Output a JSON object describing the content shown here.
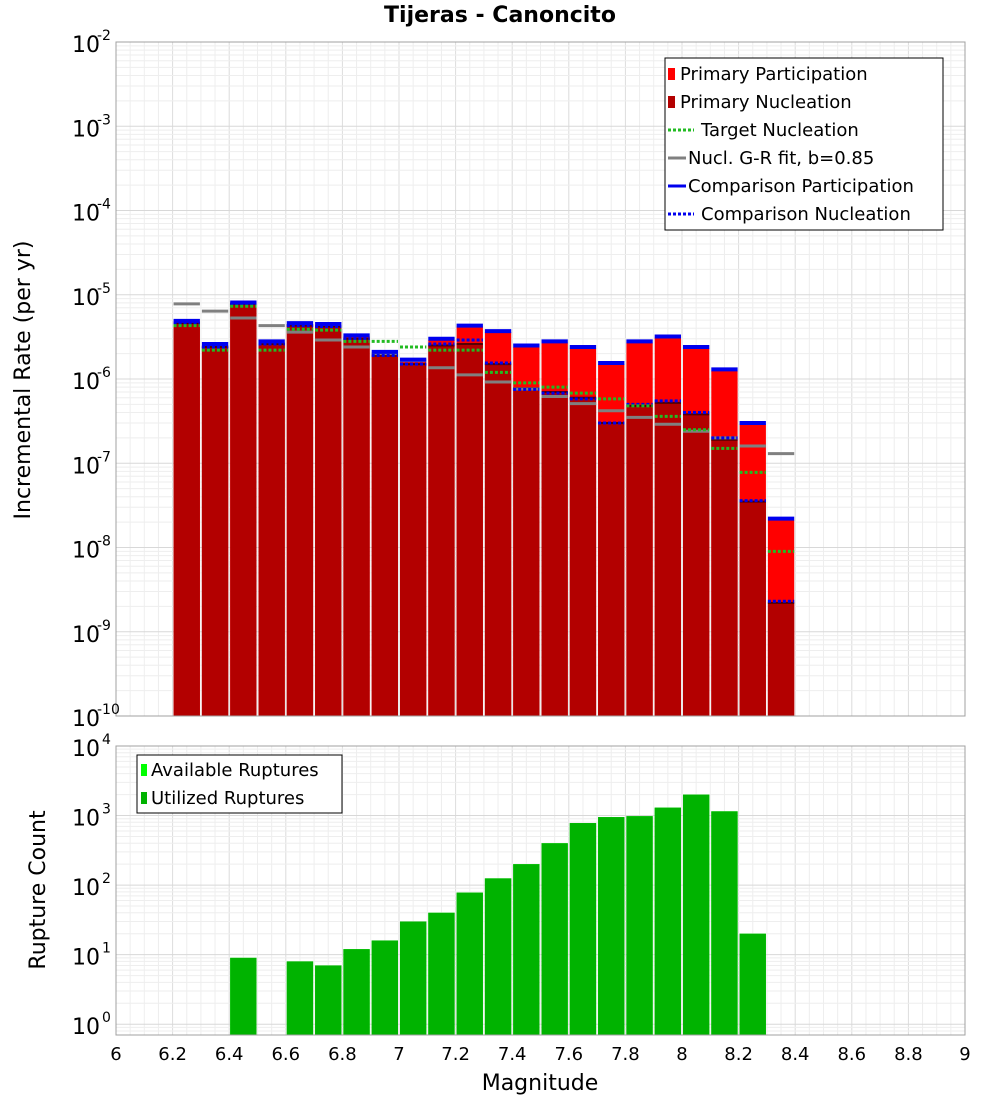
{
  "chart_data": [
    {
      "type": "bar",
      "title": "Tijeras - Canoncito",
      "xlabel": "",
      "ylabel": "Incremental Rate (per yr)",
      "yscale": "log",
      "ylim": [
        1e-10,
        0.01
      ],
      "xlim": [
        6,
        9
      ],
      "ytick_labels": [
        {
          "base": "10",
          "exp": "-2",
          "value": 0.01
        },
        {
          "base": "10",
          "exp": "-3",
          "value": 0.001
        },
        {
          "base": "10",
          "exp": "-4",
          "value": 0.0001
        },
        {
          "base": "10",
          "exp": "-5",
          "value": 1e-05
        },
        {
          "base": "10",
          "exp": "-6",
          "value": 1e-06
        },
        {
          "base": "10",
          "exp": "-7",
          "value": 1e-07
        },
        {
          "base": "10",
          "exp": "-8",
          "value": 1e-08
        },
        {
          "base": "10",
          "exp": "-9",
          "value": 1e-09
        },
        {
          "base": "10",
          "exp": "-10",
          "value": 1e-10
        }
      ],
      "grid": true,
      "legend_position": "top-right",
      "x": [
        6.25,
        6.35,
        6.45,
        6.55,
        6.65,
        6.75,
        6.85,
        6.95,
        7.05,
        7.15,
        7.25,
        7.35,
        7.45,
        7.55,
        7.65,
        7.75,
        7.85,
        7.95,
        8.05,
        8.15,
        8.25,
        8.35
      ],
      "series": [
        {
          "name": "Primary Participation",
          "color": "#ff0000",
          "values": [
            4.8e-06,
            2.5e-06,
            8e-06,
            2.7e-06,
            4.5e-06,
            4.4e-06,
            3.2e-06,
            2e-06,
            1.6e-06,
            2.9e-06,
            4.2e-06,
            3.6e-06,
            2.4e-06,
            2.7e-06,
            2.3e-06,
            1.5e-06,
            2.7e-06,
            3.1e-06,
            2.3e-06,
            1.25e-06,
            2.9e-07,
            2.1e-08
          ]
        },
        {
          "name": "Primary Nucleation",
          "color": "#b30000",
          "values": [
            4.6e-06,
            2.4e-06,
            7.8e-06,
            2.6e-06,
            4.3e-06,
            4.2e-06,
            3e-06,
            1.9e-06,
            1.5e-06,
            2.5e-06,
            2.6e-06,
            1.5e-06,
            7.8e-07,
            7e-07,
            6e-07,
            3e-07,
            4.8e-07,
            5.2e-07,
            3.8e-07,
            1.9e-07,
            3.5e-08,
            2.2e-09
          ]
        },
        {
          "name": "Target Nucleation",
          "color": "#22bb22",
          "style": "dotted",
          "values": [
            4.3e-06,
            2.2e-06,
            7.3e-06,
            2.2e-06,
            3.9e-06,
            3.8e-06,
            2.8e-06,
            2.8e-06,
            2.4e-06,
            2.2e-06,
            2.2e-06,
            1.2e-06,
            9e-07,
            8e-07,
            6.8e-07,
            5.8e-07,
            4.8e-07,
            3.6e-07,
            2.5e-07,
            1.5e-07,
            7.8e-08,
            9e-09
          ]
        },
        {
          "name": "Nucl. G-R fit, b=0.85",
          "color": "#808080",
          "values": [
            7.8e-06,
            6.4e-06,
            5.3e-06,
            4.3e-06,
            3.6e-06,
            2.9e-06,
            2.4e-06,
            2e-06,
            1.65e-06,
            1.36e-06,
            1.12e-06,
            9.2e-07,
            7.6e-07,
            6.2e-07,
            5.1e-07,
            4.2e-07,
            3.5e-07,
            2.9e-07,
            2.4e-07,
            2e-07,
            1.6e-07,
            1.3e-07
          ]
        },
        {
          "name": "Comparison Participation",
          "color": "#0000ee",
          "values": [
            4.9e-06,
            2.6e-06,
            8.1e-06,
            2.8e-06,
            4.6e-06,
            4.5e-06,
            3.3e-06,
            2.1e-06,
            1.7e-06,
            3e-06,
            4.3e-06,
            3.7e-06,
            2.5e-06,
            2.8e-06,
            2.4e-06,
            1.55e-06,
            2.8e-06,
            3.2e-06,
            2.4e-06,
            1.3e-06,
            3e-07,
            2.2e-08
          ]
        },
        {
          "name": "Comparison Nucleation",
          "color": "#0000ee",
          "style": "dotted",
          "values": [
            4.6e-06,
            2.4e-06,
            7.8e-06,
            2.6e-06,
            4.3e-06,
            4.2e-06,
            3e-06,
            1.9e-06,
            1.5e-06,
            2.6e-06,
            2.9e-06,
            1.55e-06,
            7.5e-07,
            6.8e-07,
            5.8e-07,
            3e-07,
            5e-07,
            5.5e-07,
            4e-07,
            2e-07,
            3.6e-08,
            2.3e-09
          ]
        }
      ]
    },
    {
      "type": "bar",
      "title": "",
      "xlabel": "Magnitude",
      "ylabel": "Rupture Count",
      "yscale": "log",
      "ylim": [
        0.7,
        10000
      ],
      "xlim": [
        6,
        9
      ],
      "xtick_labels": [
        "6",
        "6.2",
        "6.4",
        "6.6",
        "6.8",
        "7",
        "7.2",
        "7.4",
        "7.6",
        "7.8",
        "8",
        "8.2",
        "8.4",
        "8.6",
        "8.8",
        "9"
      ],
      "ytick_labels": [
        {
          "base": "10",
          "exp": "4",
          "value": 10000
        },
        {
          "base": "10",
          "exp": "3",
          "value": 1000
        },
        {
          "base": "10",
          "exp": "2",
          "value": 100
        },
        {
          "base": "10",
          "exp": "1",
          "value": 10
        },
        {
          "base": "10",
          "exp": "0",
          "value": 1
        }
      ],
      "grid": true,
      "legend_position": "top-left",
      "x": [
        6.45,
        6.65,
        6.75,
        6.85,
        6.95,
        7.05,
        7.15,
        7.25,
        7.35,
        7.45,
        7.55,
        7.65,
        7.75,
        7.85,
        7.95,
        8.05,
        8.15,
        8.25
      ],
      "series": [
        {
          "name": "Available Ruptures",
          "color": "#00ff00",
          "values": [
            9,
            8,
            7,
            12,
            16,
            30,
            40,
            78,
            125,
            200,
            400,
            780,
            950,
            980,
            1300,
            2000,
            1150,
            20
          ]
        },
        {
          "name": "Utilized Ruptures",
          "color": "#00b300",
          "values": [
            9,
            8,
            7,
            12,
            16,
            30,
            40,
            78,
            125,
            200,
            400,
            780,
            950,
            980,
            1300,
            2000,
            1150,
            20
          ]
        }
      ]
    }
  ]
}
